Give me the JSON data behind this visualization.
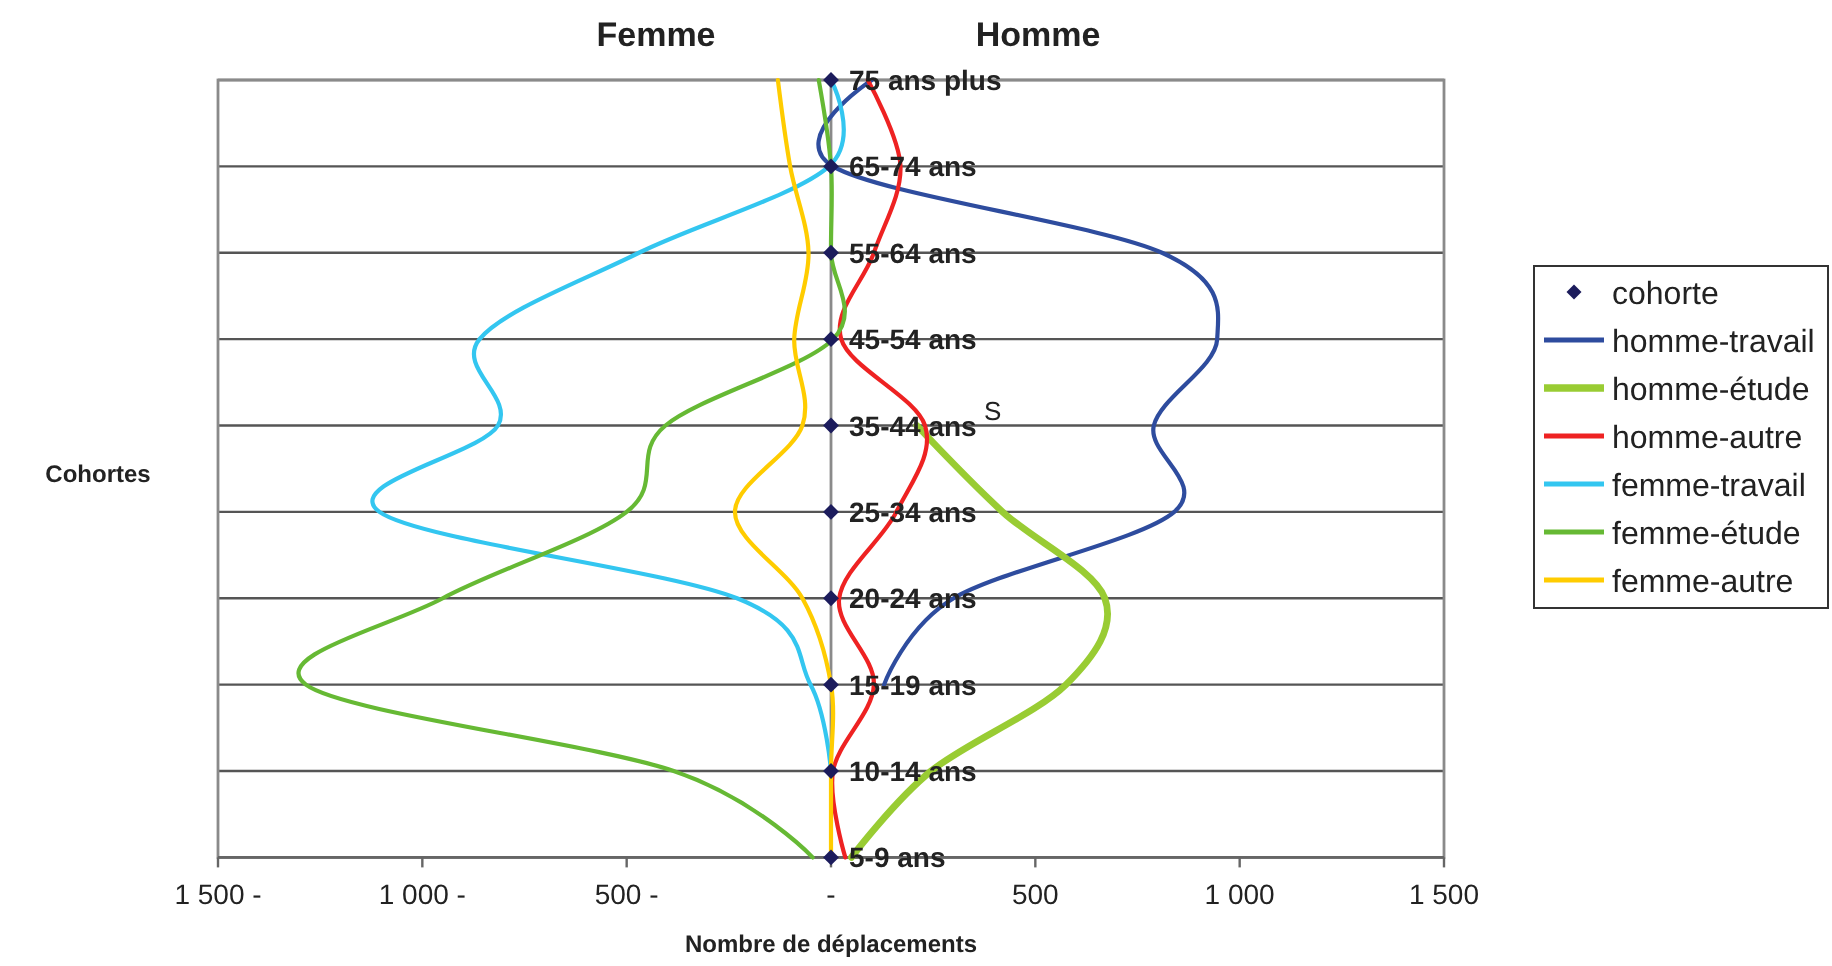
{
  "chart_data": {
    "type": "line",
    "orientation": "horizontal",
    "categories": [
      "75 ans plus",
      "65-74 ans",
      "55-64 ans",
      "45-54 ans",
      "35-44 ans",
      "25-34 ans",
      "20-24 ans",
      "15-19 ans",
      "10-14 ans",
      "5-9 ans"
    ],
    "xlabel": "Nombre de déplacements",
    "ylabel": "Cohortes",
    "annotations": [
      "Femme",
      "Homme",
      "S"
    ],
    "xlim": [
      -1500,
      1500
    ],
    "xticks": [
      {
        "value": -1500,
        "label": "1 500 -"
      },
      {
        "value": -1000,
        "label": "1 000 -"
      },
      {
        "value": -500,
        "label": "500 -"
      },
      {
        "value": 0,
        "label": "-"
      },
      500,
      {
        "value": 1000,
        "label": "1 000"
      },
      {
        "value": 1500,
        "label": "1 500"
      }
    ],
    "grid": "y",
    "legend": "right",
    "series": [
      {
        "name": "cohorte",
        "type": "scatter",
        "marker": "diamond",
        "color": "#1c1c5c",
        "values": [
          0,
          0,
          0,
          0,
          0,
          0,
          0,
          0,
          0,
          0
        ]
      },
      {
        "name": "homme-travail",
        "color": "#2e4c9e",
        "values": [
          100,
          5,
          810,
          945,
          790,
          840,
          300,
          130,
          null,
          null
        ]
      },
      {
        "name": "homme-étude",
        "color": "#99cc33",
        "values": [
          null,
          null,
          null,
          null,
          210,
          420,
          670,
          575,
          245,
          50
        ]
      },
      {
        "name": "homme-autre",
        "color": "#ee2222",
        "values": [
          90,
          170,
          105,
          25,
          230,
          160,
          20,
          105,
          5,
          35
        ]
      },
      {
        "name": "femme-travail",
        "color": "#33c6f0",
        "values": [
          0,
          -5,
          -470,
          -860,
          -815,
          -1105,
          -230,
          -50,
          0,
          null
        ]
      },
      {
        "name": "femme-étude",
        "color": "#66b934",
        "values": [
          -30,
          0,
          0,
          5,
          -405,
          -500,
          -950,
          -1285,
          -385,
          -45
        ]
      },
      {
        "name": "femme-autre",
        "color": "#ffcc00",
        "values": [
          -130,
          -100,
          -55,
          -90,
          -70,
          -235,
          -70,
          0,
          0,
          0
        ]
      }
    ]
  }
}
